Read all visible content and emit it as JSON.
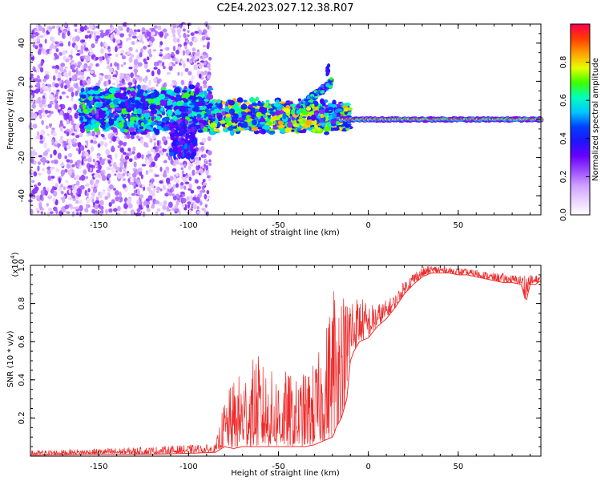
{
  "figure": {
    "title": "C2E4.2023.027.12.38.R07"
  },
  "chart_data": [
    {
      "type": "heatmap",
      "title": "C2E4.2023.027.12.38.R07",
      "xlabel": "Height of straight line (km)",
      "ylabel": "Frequency (Hz)",
      "xlim": [
        -188,
        96
      ],
      "ylim": [
        -50,
        50
      ],
      "x_ticks": [
        -150,
        -100,
        -50,
        0,
        50
      ],
      "y_ticks": [
        -40,
        -20,
        0,
        20,
        40
      ],
      "colorbar": {
        "label": "Normalized spectral amplitude",
        "range": [
          0,
          1
        ],
        "ticks": [
          "0.0",
          "0.2",
          "0.4",
          "0.6",
          "0.8"
        ],
        "colormap": [
          "#ffffff",
          "#ead2ff",
          "#cda0ff",
          "#9b4dff",
          "#6a00ff",
          "#1e14ff",
          "#0040ff",
          "#00c8ff",
          "#00ffc0",
          "#3cff00",
          "#e6ff00",
          "#ffa000",
          "#ff3c00",
          "#ff0050"
        ]
      },
      "regions": [
        {
          "x_range": [
            -188,
            -88
          ],
          "description": "sparse scattered low-amplitude spectrum",
          "freq_spread": 50
        },
        {
          "x_range": [
            -160,
            -88
          ],
          "center_band": [
            -5,
            15
          ],
          "peak_amplitude": 0.45
        },
        {
          "x_range": [
            -88,
            -10
          ],
          "center_band": [
            -5,
            8
          ],
          "peak_amplitude": 0.6
        },
        {
          "x_range": [
            -40,
            -20
          ],
          "branch": "upward curve from 5 Hz to 20 Hz",
          "peak_amplitude": 0.45
        },
        {
          "x_range": [
            -23,
            -22
          ],
          "blob_freq": 26,
          "peak_amplitude": 0.4
        },
        {
          "x_range": [
            -15,
            96
          ],
          "center_band": [
            -1,
            1
          ],
          "peak_amplitude": 0.95
        }
      ]
    },
    {
      "type": "line",
      "xlabel": "Height of straight line (km)",
      "ylabel": "SNR (10 * v/v)",
      "multiplier_label": "(x10",
      "multiplier_exp": "4",
      "multiplier_close": ")",
      "xlim": [
        -188,
        96
      ],
      "ylim": [
        0,
        1.0
      ],
      "x_ticks": [
        -150,
        -100,
        -50,
        0,
        50
      ],
      "y_ticks": [
        0.2,
        0.4,
        0.6,
        0.8,
        1.0
      ],
      "series": [
        {
          "color": "#ee2a2a",
          "envelope_x": [
            -188,
            -150,
            -120,
            -100,
            -85,
            -80,
            -75,
            -70,
            -65,
            -62,
            -60,
            -55,
            -50,
            -45,
            -40,
            -35,
            -30,
            -25,
            -20,
            -19,
            -18,
            -15,
            -12,
            -11,
            -10,
            -8,
            -5,
            0,
            5,
            10,
            15,
            20,
            25,
            30,
            35,
            40,
            45,
            50,
            55,
            60,
            65,
            70,
            75,
            80,
            85,
            87,
            88,
            90,
            93,
            96
          ],
          "envelope_lo": [
            0.005,
            0.01,
            0.01,
            0.015,
            0.02,
            0.05,
            0.04,
            0.05,
            0.05,
            0.05,
            0.05,
            0.05,
            0.05,
            0.05,
            0.05,
            0.05,
            0.06,
            0.08,
            0.1,
            0.12,
            0.15,
            0.2,
            0.3,
            0.4,
            0.5,
            0.55,
            0.6,
            0.62,
            0.68,
            0.72,
            0.78,
            0.85,
            0.9,
            0.94,
            0.96,
            0.96,
            0.96,
            0.95,
            0.95,
            0.94,
            0.93,
            0.92,
            0.91,
            0.91,
            0.9,
            0.83,
            0.82,
            0.9,
            0.9,
            0.92
          ],
          "envelope_hi": [
            0.03,
            0.04,
            0.05,
            0.06,
            0.06,
            0.3,
            0.4,
            0.45,
            0.5,
            0.55,
            0.5,
            0.45,
            0.45,
            0.45,
            0.4,
            0.45,
            0.5,
            0.6,
            0.9,
            1.0,
            0.95,
            0.9,
            0.85,
            1.0,
            0.9,
            0.85,
            0.85,
            0.8,
            0.8,
            0.82,
            0.85,
            0.92,
            0.97,
            0.99,
            1.0,
            1.0,
            0.99,
            0.99,
            0.98,
            0.98,
            0.97,
            0.96,
            0.96,
            0.95,
            0.95,
            0.97,
            0.98,
            0.95,
            0.95,
            0.95
          ]
        }
      ]
    }
  ]
}
